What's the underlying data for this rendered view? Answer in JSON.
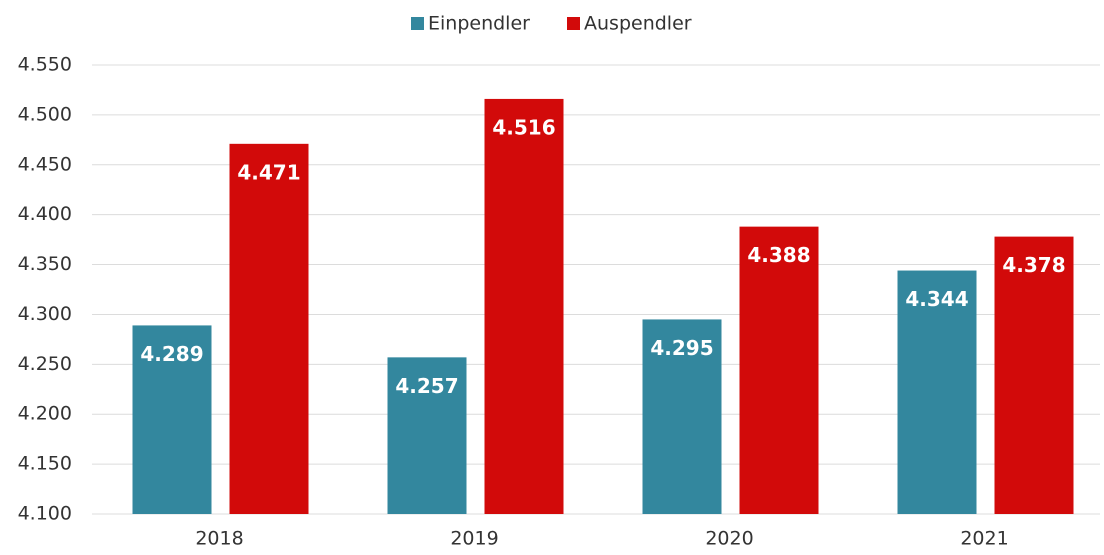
{
  "chart_data": {
    "type": "bar",
    "categories": [
      "2018",
      "2019",
      "2020",
      "2021"
    ],
    "series": [
      {
        "name": "Einpendler",
        "color": "#33879e",
        "values": [
          4289,
          4257,
          4295,
          4344
        ],
        "value_labels": [
          "4.289",
          "4.257",
          "4.295",
          "4.344"
        ]
      },
      {
        "name": "Auspendler",
        "color": "#d20a0a",
        "values": [
          4471,
          4516,
          4388,
          4378
        ],
        "value_labels": [
          "4.471",
          "4.516",
          "4.388",
          "4.378"
        ]
      }
    ],
    "ylim": [
      4100,
      4550
    ],
    "yticks": [
      {
        "value": 4100,
        "label": "4.100"
      },
      {
        "value": 4150,
        "label": "4.150"
      },
      {
        "value": 4200,
        "label": "4.200"
      },
      {
        "value": 4250,
        "label": "4.250"
      },
      {
        "value": 4300,
        "label": "4.300"
      },
      {
        "value": 4350,
        "label": "4.350"
      },
      {
        "value": 4400,
        "label": "4.400"
      },
      {
        "value": 4450,
        "label": "4.450"
      },
      {
        "value": 4500,
        "label": "4.500"
      },
      {
        "value": 4550,
        "label": "4.550"
      }
    ],
    "grid": true,
    "legend": "top"
  }
}
